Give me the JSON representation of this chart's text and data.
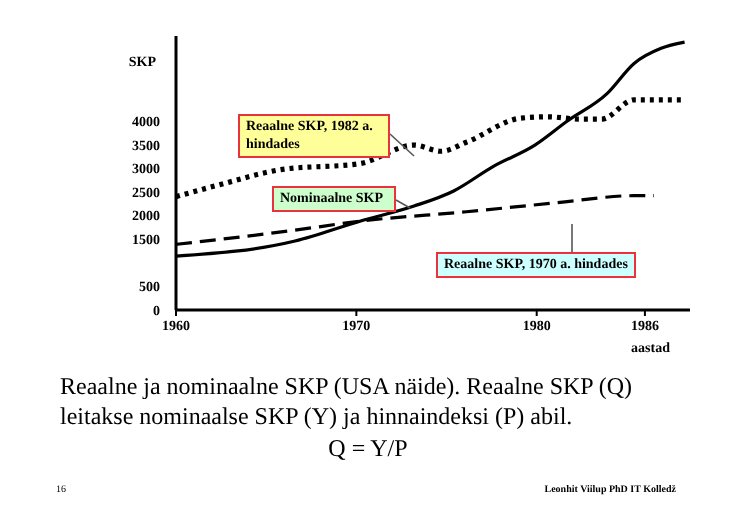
{
  "chart_data": {
    "type": "line",
    "ylabel": "SKP",
    "xlabel": "aastad",
    "xlim": [
      1960,
      1988.5
    ],
    "xticks": [
      1960,
      1970,
      1980,
      1986
    ],
    "ylim": [
      0,
      5800
    ],
    "yticks": [
      0,
      500,
      1500,
      2000,
      2500,
      3000,
      3500,
      4000
    ],
    "marker": "none",
    "series": [
      {
        "name": "Reaalne SKP, 1982 a. hindades",
        "color": "#000000",
        "line_style": "dotted",
        "x": [
          1960,
          1962.4,
          1965.8,
          1970.2,
          1973.2,
          1974.7,
          1976.1,
          1979.1,
          1980.6,
          1982.4,
          1983.6,
          1985.4,
          1988
        ],
        "values": [
          2400,
          2650,
          2970,
          3100,
          3490,
          3360,
          3550,
          4060,
          4090,
          4040,
          4040,
          4450,
          4450
        ]
      },
      {
        "name": "Nominaalne SKP",
        "color": "#000000",
        "line_style": "solid",
        "x": [
          1960,
          1966.6,
          1970.2,
          1973.2,
          1975.4,
          1977.6,
          1979.9,
          1981.7,
          1983.9,
          1985.4,
          1986.9,
          1988.2
        ],
        "values": [
          1140,
          1460,
          1880,
          2200,
          2520,
          3040,
          3490,
          4000,
          4580,
          5220,
          5540,
          5670
        ]
      },
      {
        "name": "Reaalne SKP, 1970 a. hindades",
        "color": "#000000",
        "line_style": "dashed",
        "x": [
          1960,
          1966.6,
          1970.2,
          1976.1,
          1981.1,
          1985.4,
          1986.5
        ],
        "values": [
          1390,
          1690,
          1880,
          2080,
          2270,
          2420,
          2420
        ]
      }
    ],
    "annotations": [
      "Reaalne ja nominaalne SKP (USA näide). Reaalne SKP (Q) leitakse nominaalse SKP (Y) ja hinnaindeksi (P) abil.",
      "Q = Y/P",
      "16",
      "Leonhit Viilup PhD IT Kolledž"
    ]
  }
}
